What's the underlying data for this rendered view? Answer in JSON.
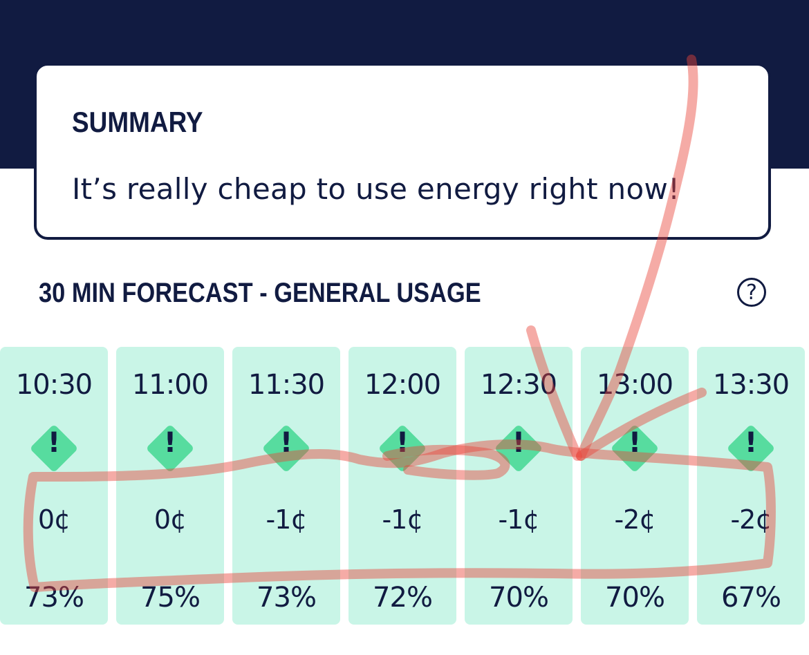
{
  "summary": {
    "title": "SUMMARY",
    "text": "It’s really cheap to use energy right now!"
  },
  "forecast": {
    "title": "30 MIN FORECAST - GENERAL USAGE",
    "help_icon": "question-circle-icon",
    "help_glyph": "?",
    "status_icon": "warning-diamond-icon",
    "status_glyph": "!",
    "columns": [
      {
        "time": "10:30",
        "price": "0¢",
        "percent": "73%"
      },
      {
        "time": "11:00",
        "price": "0¢",
        "percent": "75%"
      },
      {
        "time": "11:30",
        "price": "-1¢",
        "percent": "73%"
      },
      {
        "time": "12:00",
        "price": "-1¢",
        "percent": "72%"
      },
      {
        "time": "12:30",
        "price": "-1¢",
        "percent": "70%"
      },
      {
        "time": "13:00",
        "price": "-2¢",
        "percent": "70%"
      },
      {
        "time": "13:30",
        "price": "-2¢",
        "percent": "67%"
      }
    ]
  },
  "colors": {
    "navy": "#111b41",
    "column_bg": "#c9f5e7",
    "icon_green": "#57dc9f",
    "annotation_red": "#e8443a"
  }
}
